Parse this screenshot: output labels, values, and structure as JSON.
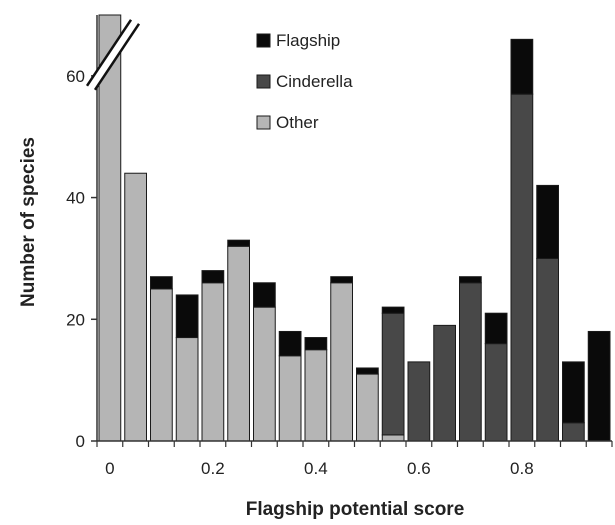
{
  "chart_data": {
    "type": "bar",
    "stacked": true,
    "title": "",
    "xlabel": "Flagship potential score",
    "ylabel": "Number of species",
    "xlim": [
      -0.025,
      0.975
    ],
    "ylim": [
      0,
      70
    ],
    "axis_break": "y-axis above 60 (first bar truncated)",
    "grid": false,
    "legend_position": "top-center",
    "x_ticks": [
      0,
      0.2,
      0.4,
      0.6,
      0.8
    ],
    "x_tick_labels": [
      "0",
      "0.2",
      "0.4",
      "0.6",
      "0.8"
    ],
    "y_ticks": [
      0,
      20,
      40,
      60
    ],
    "y_tick_labels": [
      "0",
      "20",
      "40",
      "60"
    ],
    "bin_width": 0.05,
    "bin_starts": [
      0,
      0.05,
      0.1,
      0.15,
      0.2,
      0.25,
      0.3,
      0.35,
      0.4,
      0.45,
      0.5,
      0.55,
      0.6,
      0.65,
      0.7,
      0.75,
      0.8,
      0.85,
      0.9,
      0.95
    ],
    "series": [
      {
        "name": "Other",
        "color": "#b5b5b5",
        "values": [
          70,
          44,
          25,
          17,
          26,
          32,
          22,
          14,
          15,
          26,
          11,
          1,
          0,
          0,
          0,
          0,
          0,
          0,
          0,
          0
        ]
      },
      {
        "name": "Cinderella",
        "color": "#484848",
        "values": [
          0,
          0,
          0,
          0,
          0,
          0,
          0,
          0,
          0,
          0,
          0,
          20,
          13,
          19,
          26,
          16,
          57,
          30,
          3,
          0
        ]
      },
      {
        "name": "Flagship",
        "color": "#0a0a0a",
        "values": [
          0,
          0,
          2,
          7,
          2,
          1,
          4,
          4,
          2,
          1,
          1,
          1,
          0,
          0,
          1,
          5,
          9,
          12,
          10,
          18
        ]
      }
    ],
    "legend_order": [
      "Flagship",
      "Cinderella",
      "Other"
    ]
  }
}
